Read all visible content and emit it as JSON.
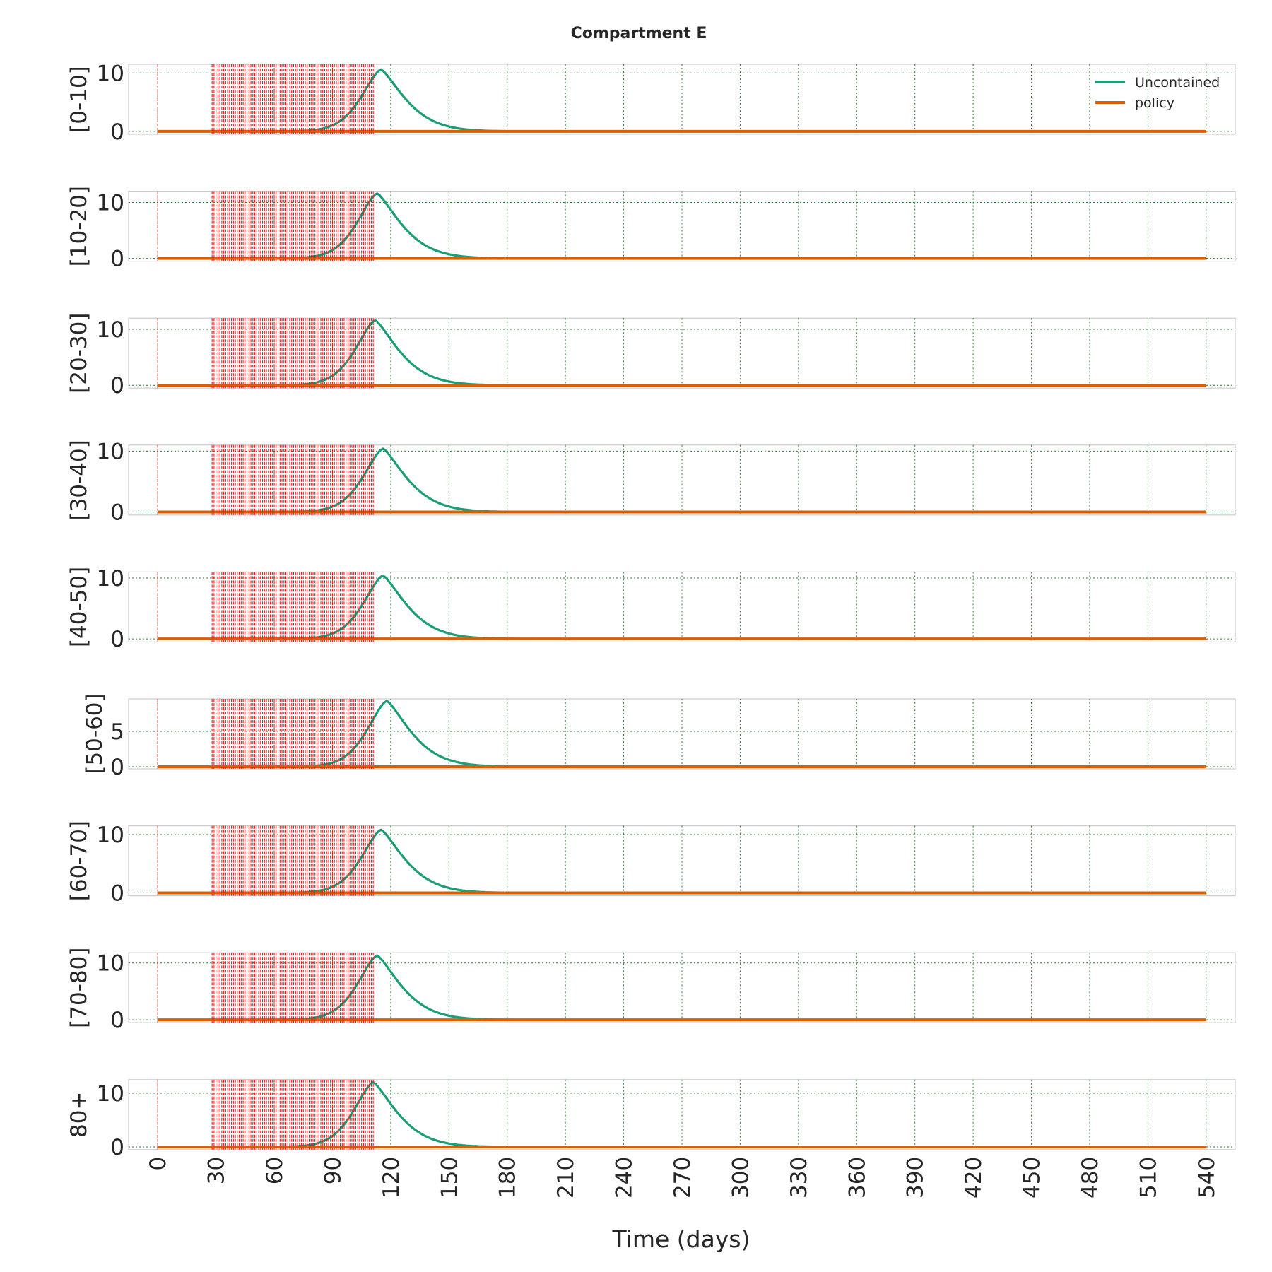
{
  "chart_data": {
    "type": "line",
    "title": "Compartment E",
    "xlabel": "Time (days)",
    "xlim": [
      -15,
      555
    ],
    "xticks": [
      0,
      30,
      60,
      90,
      120,
      150,
      180,
      210,
      240,
      270,
      300,
      330,
      360,
      390,
      420,
      450,
      480,
      510,
      540
    ],
    "x_range": [
      0,
      540
    ],
    "grid": true,
    "legend": {
      "placement": "top-right",
      "entries": [
        {
          "name": "Uncontained",
          "color": "#1b9e77"
        },
        {
          "name": "policy",
          "color": "#d95f02"
        }
      ]
    },
    "policy_markers": {
      "color": "#e41a1c",
      "days": [
        0,
        28,
        29,
        30,
        31,
        32,
        33,
        34,
        35,
        36,
        37,
        38,
        39,
        40,
        41,
        42,
        43,
        44,
        45,
        46,
        47,
        48,
        49,
        50,
        51,
        52,
        53,
        54,
        55,
        56,
        57,
        58,
        59,
        60,
        61,
        62,
        63,
        64,
        65,
        66,
        67,
        68,
        69,
        70,
        71,
        72,
        73,
        74,
        75,
        76,
        77,
        78,
        79,
        80,
        81,
        82,
        83,
        84,
        85,
        86,
        87,
        88,
        89,
        90,
        91,
        92,
        93,
        94,
        95,
        96,
        97,
        98,
        99,
        100,
        101,
        102,
        103,
        104,
        105,
        106,
        107,
        108,
        109,
        110,
        111
      ]
    },
    "panels": [
      {
        "ylabel": "[0-10]",
        "ylim": [
          -0.5,
          11.5
        ],
        "yticks": [
          0,
          10
        ],
        "series": [
          {
            "name": "Uncontained",
            "peak_day": 115,
            "peak_value": 10.6
          },
          {
            "name": "policy",
            "constant": 0
          }
        ]
      },
      {
        "ylabel": "[10-20]",
        "ylim": [
          -0.5,
          12.0
        ],
        "yticks": [
          0,
          10
        ],
        "series": [
          {
            "name": "Uncontained",
            "peak_day": 113,
            "peak_value": 11.6
          },
          {
            "name": "policy",
            "constant": 0
          }
        ]
      },
      {
        "ylabel": "[20-30]",
        "ylim": [
          -0.5,
          12.0
        ],
        "yticks": [
          0,
          10
        ],
        "series": [
          {
            "name": "Uncontained",
            "peak_day": 112,
            "peak_value": 11.6
          },
          {
            "name": "policy",
            "constant": 0
          }
        ]
      },
      {
        "ylabel": "[30-40]",
        "ylim": [
          -0.5,
          11.0
        ],
        "yticks": [
          0,
          10
        ],
        "series": [
          {
            "name": "Uncontained",
            "peak_day": 116,
            "peak_value": 10.4
          },
          {
            "name": "policy",
            "constant": 0
          }
        ]
      },
      {
        "ylabel": "[40-50]",
        "ylim": [
          -0.5,
          11.0
        ],
        "yticks": [
          0,
          10
        ],
        "series": [
          {
            "name": "Uncontained",
            "peak_day": 116,
            "peak_value": 10.4
          },
          {
            "name": "policy",
            "constant": 0
          }
        ]
      },
      {
        "ylabel": "[50-60]",
        "ylim": [
          -0.3,
          9.6
        ],
        "yticks": [
          0,
          5
        ],
        "series": [
          {
            "name": "Uncontained",
            "peak_day": 118,
            "peak_value": 9.3
          },
          {
            "name": "policy",
            "constant": 0
          }
        ]
      },
      {
        "ylabel": "[60-70]",
        "ylim": [
          -0.5,
          11.5
        ],
        "yticks": [
          0,
          10
        ],
        "series": [
          {
            "name": "Uncontained",
            "peak_day": 115,
            "peak_value": 10.8
          },
          {
            "name": "policy",
            "constant": 0
          }
        ]
      },
      {
        "ylabel": "[70-80]",
        "ylim": [
          -0.5,
          11.8
        ],
        "yticks": [
          0,
          10
        ],
        "series": [
          {
            "name": "Uncontained",
            "peak_day": 113,
            "peak_value": 11.3
          },
          {
            "name": "policy",
            "constant": 0
          }
        ]
      },
      {
        "ylabel": "80+",
        "ylim": [
          -0.5,
          12.5
        ],
        "yticks": [
          0,
          10
        ],
        "series": [
          {
            "name": "Uncontained",
            "peak_day": 111,
            "peak_value": 12.0
          },
          {
            "name": "policy",
            "constant": 0
          }
        ]
      }
    ]
  }
}
